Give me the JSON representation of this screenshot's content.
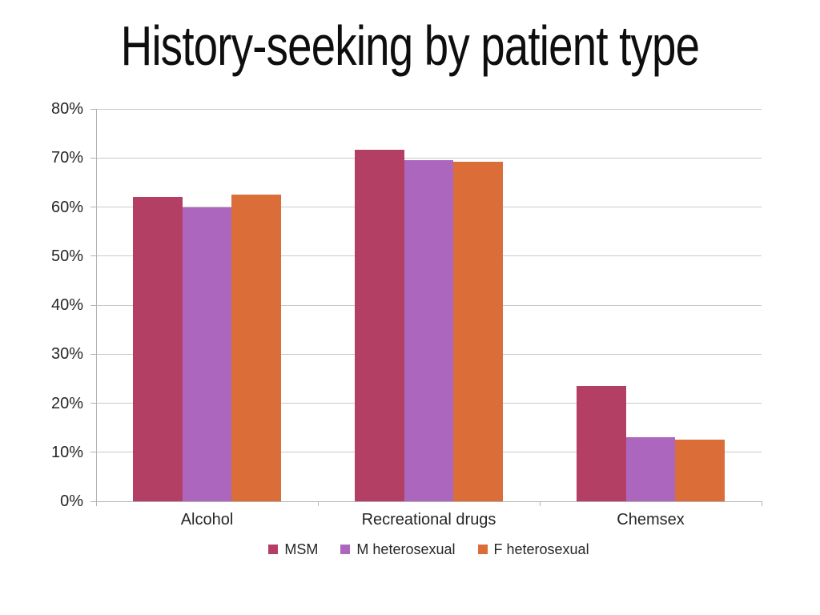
{
  "slide": {
    "title": "History-seeking by patient type"
  },
  "chart_data": {
    "type": "bar",
    "title": "History-seeking by patient type",
    "categories": [
      "Alcohol",
      "Recreational drugs",
      "Chemsex"
    ],
    "series": [
      {
        "name": "MSM",
        "color": "#b43f65",
        "values": [
          62,
          71.7,
          23.5
        ]
      },
      {
        "name": "M heterosexual",
        "color": "#ac66be",
        "values": [
          60,
          69.5,
          13.0
        ]
      },
      {
        "name": "F heterosexual",
        "color": "#db6e38",
        "values": [
          62.5,
          69.3,
          12.5
        ]
      }
    ],
    "xlabel": "",
    "ylabel": "",
    "ylim": [
      0,
      80
    ],
    "ytick_step": 10,
    "ytick_labels": [
      "0%",
      "10%",
      "20%",
      "30%",
      "40%",
      "50%",
      "60%",
      "70%",
      "80%"
    ],
    "grid": true,
    "legend_position": "bottom",
    "gridline_color": "#c9c9c9",
    "axis_color": "#b3b3b3",
    "label_color": "#262626"
  }
}
